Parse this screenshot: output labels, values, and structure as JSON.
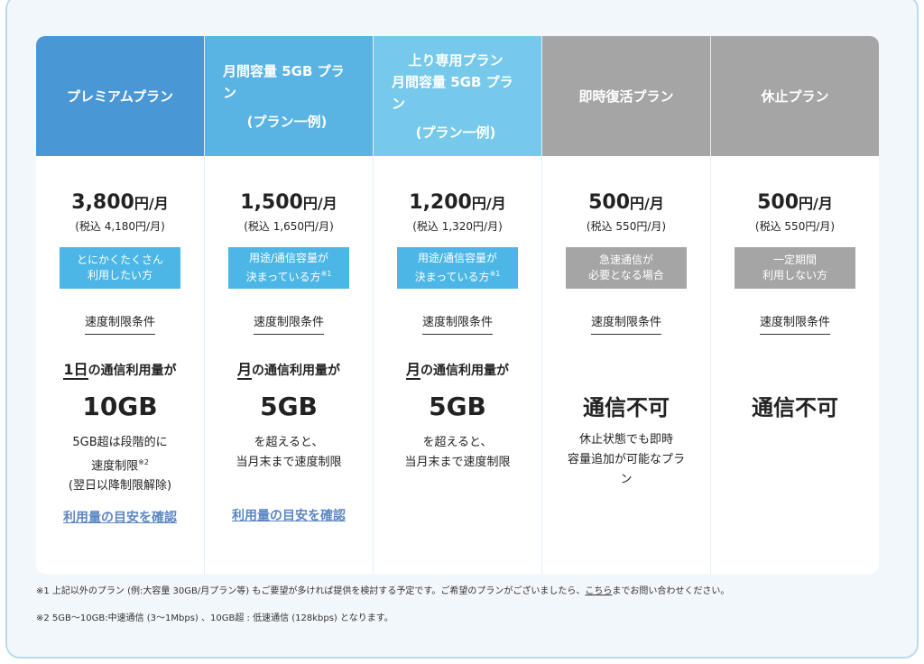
{
  "colors": {
    "premium": "#4a97d6",
    "plan_5gb": "#59b3e3",
    "plan_upload": "#76c9ea",
    "gray": "#a5a5a5",
    "badge_blue": "#4cb7e6",
    "link": "#5b86c4"
  },
  "plans": [
    {
      "name": "プレミアムプラン",
      "sub": "",
      "price": "3,800",
      "unit_yen": "円",
      "unit_month": "/月",
      "tax": "(税込 4,180円/月)",
      "badge": [
        "とにかくたくさん",
        "利用したい方"
      ],
      "badge_mark": "",
      "condition_label": "速度制限条件",
      "usage_emph": "1日",
      "usage_rest": "の通信利用量が",
      "big": "10GB",
      "note": [
        "5GB超は段階的に",
        "速度制限",
        "(翌日以降制限解除)"
      ],
      "note_mark": "※2",
      "link": "利用量の目安を確認"
    },
    {
      "name": "月間容量 5GB プラン",
      "sub": "(プラン一例)",
      "price": "1,500",
      "unit_yen": "円",
      "unit_month": "/月",
      "tax": "(税込 1,650円/月)",
      "badge": [
        "用途/通信容量が",
        "決まっている方"
      ],
      "badge_mark": "※1",
      "condition_label": "速度制限条件",
      "usage_emph": "月",
      "usage_rest": "の通信利用量が",
      "big": "5GB",
      "note": [
        "を超えると、",
        "当月末まで速度制限"
      ],
      "note_mark": "",
      "link": "利用量の目安を確認"
    },
    {
      "name": "上り専用プラン",
      "name2": "月間容量 5GB プラン",
      "sub": "(プラン一例)",
      "price": "1,200",
      "unit_yen": "円",
      "unit_month": "/月",
      "tax": "(税込 1,320円/月)",
      "badge": [
        "用途/通信容量が",
        "決まっている方"
      ],
      "badge_mark": "※1",
      "condition_label": "速度制限条件",
      "usage_emph": "月",
      "usage_rest": "の通信利用量が",
      "big": "5GB",
      "note": [
        "を超えると、",
        "当月末まで速度制限"
      ],
      "note_mark": "",
      "link": ""
    },
    {
      "name": "即時復活プラン",
      "sub": "",
      "price": "500",
      "unit_yen": "円",
      "unit_month": "/月",
      "tax": "(税込 550円/月)",
      "badge": [
        "急速通信が",
        "必要となる場合"
      ],
      "badge_mark": "",
      "condition_label": "速度制限条件",
      "big": "通信不可",
      "note": [
        "休止状態でも即時",
        "容量追加が可能なプラ",
        "ン"
      ],
      "note_mark": "",
      "link": ""
    },
    {
      "name": "休止プラン",
      "sub": "",
      "price": "500",
      "unit_yen": "円",
      "unit_month": "/月",
      "tax": "(税込 550円/月)",
      "badge": [
        "一定期間",
        "利用しない方"
      ],
      "badge_mark": "",
      "condition_label": "速度制限条件",
      "big": "通信不可",
      "note": [],
      "note_mark": "",
      "link": ""
    }
  ],
  "footnotes": {
    "fn1_before": "※1 上記以外のプラン (例:大容量 30GB/月プラン等) もご要望が多ければ提供を検討する予定です。ご希望のプランがございましたら、",
    "fn1_link": "こちら",
    "fn1_after": "までお問い合わせください。",
    "fn2": "※2 5GB～10GB:中速通信 (3～1Mbps) 、10GB超 : 低速通信 (128kbps) となります。"
  }
}
